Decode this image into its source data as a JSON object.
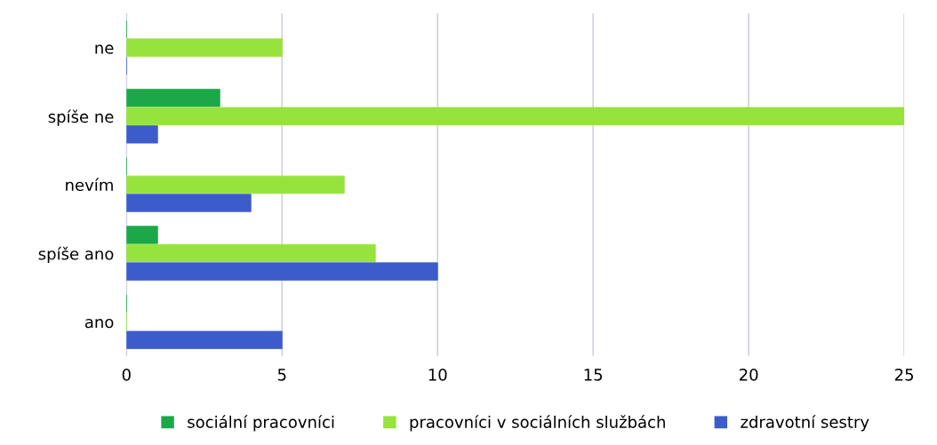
{
  "chart_data": {
    "type": "bar",
    "orientation": "horizontal",
    "categories": [
      "ne",
      "spíše ne",
      "nevím",
      "spíše ano",
      "ano"
    ],
    "series": [
      {
        "name": "sociální pracovníci",
        "color": "#1aa849",
        "values": [
          0,
          3,
          0,
          1,
          0
        ]
      },
      {
        "name": "pracovníci v sociálních službách",
        "color": "#95e33c",
        "values": [
          5,
          25,
          7,
          8,
          0
        ]
      },
      {
        "name": "zdravotní sestry",
        "color": "#3d5ccc",
        "values": [
          0,
          1,
          4,
          10,
          5
        ]
      }
    ],
    "xlim": [
      0,
      25
    ],
    "xticks": [
      0,
      5,
      10,
      15,
      20,
      25
    ],
    "grid": "x",
    "legend": "bottom"
  }
}
